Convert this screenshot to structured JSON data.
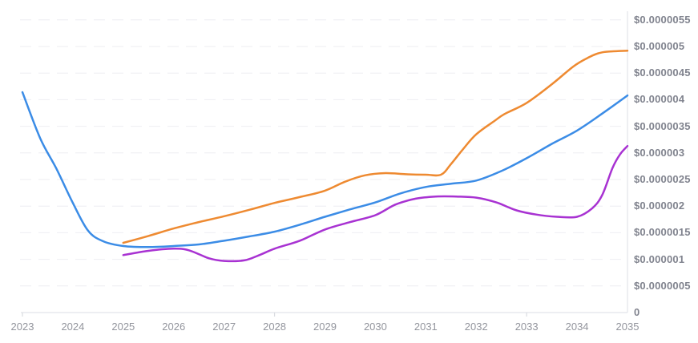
{
  "chart_data": {
    "type": "line",
    "title": "",
    "xlabel": "",
    "ylabel": "",
    "legend": null,
    "grid": "horizontal-dashed",
    "colors": {
      "blue_series": "#3b8ce6",
      "orange_series": "#ee8a31",
      "purple_series": "#a832d2",
      "axis_line": "#e2e4e9",
      "grid_line": "#eeeef2",
      "y_label_text": "#80838e",
      "x_label_text": "#93959d"
    },
    "x_axis": {
      "min": 2023,
      "max": 2035,
      "categories": [
        "2023",
        "2024",
        "2025",
        "2026",
        "2027",
        "2028",
        "2029",
        "2030",
        "2031",
        "2032",
        "2033",
        "2034",
        "2035"
      ],
      "tick_mark_years": [
        2023,
        2028,
        2033
      ]
    },
    "y_axis": {
      "position": "right",
      "min": 0,
      "max": 5.5e-06,
      "ticks": [
        {
          "value": 5.5e-06,
          "label": "$0.0000055"
        },
        {
          "value": 5e-06,
          "label": "$0.000005"
        },
        {
          "value": 4.5e-06,
          "label": "$0.0000045"
        },
        {
          "value": 4e-06,
          "label": "$0.000004"
        },
        {
          "value": 3.5e-06,
          "label": "$0.0000035"
        },
        {
          "value": 3e-06,
          "label": "$0.000003"
        },
        {
          "value": 2.5e-06,
          "label": "$0.0000025"
        },
        {
          "value": 2e-06,
          "label": "$0.000002"
        },
        {
          "value": 1.5e-06,
          "label": "$0.0000015"
        },
        {
          "value": 1e-06,
          "label": "$0.000001"
        },
        {
          "value": 5e-07,
          "label": "$0.0000005"
        },
        {
          "value": 0,
          "label": "0"
        }
      ]
    },
    "series": [
      {
        "name": "blue-line",
        "color_key": "blue_series",
        "points": [
          [
            2023,
            4.14e-06
          ],
          [
            2023.35,
            3.28e-06
          ],
          [
            2023.67,
            2.71e-06
          ],
          [
            2024,
            2.06e-06
          ],
          [
            2024.3,
            1.54e-06
          ],
          [
            2024.6,
            1.34e-06
          ],
          [
            2025,
            1.25e-06
          ],
          [
            2025.5,
            1.23e-06
          ],
          [
            2026,
            1.25e-06
          ],
          [
            2026.5,
            1.28e-06
          ],
          [
            2027,
            1.35e-06
          ],
          [
            2027.5,
            1.43e-06
          ],
          [
            2028,
            1.52e-06
          ],
          [
            2028.5,
            1.65e-06
          ],
          [
            2029,
            1.8e-06
          ],
          [
            2029.5,
            1.94e-06
          ],
          [
            2030,
            2.07e-06
          ],
          [
            2030.5,
            2.24e-06
          ],
          [
            2031,
            2.36e-06
          ],
          [
            2031.5,
            2.42e-06
          ],
          [
            2032,
            2.48e-06
          ],
          [
            2032.5,
            2.66e-06
          ],
          [
            2033,
            2.9e-06
          ],
          [
            2033.5,
            3.17e-06
          ],
          [
            2034,
            3.42e-06
          ],
          [
            2034.5,
            3.74e-06
          ],
          [
            2035,
            4.08e-06
          ]
        ]
      },
      {
        "name": "orange-line",
        "color_key": "orange_series",
        "points": [
          [
            2025,
            1.31e-06
          ],
          [
            2025.5,
            1.44e-06
          ],
          [
            2026,
            1.58e-06
          ],
          [
            2026.5,
            1.7e-06
          ],
          [
            2027,
            1.81e-06
          ],
          [
            2027.5,
            1.93e-06
          ],
          [
            2028,
            2.06e-06
          ],
          [
            2028.5,
            2.17e-06
          ],
          [
            2029,
            2.29e-06
          ],
          [
            2029.4,
            2.46e-06
          ],
          [
            2029.8,
            2.58e-06
          ],
          [
            2030.2,
            2.62e-06
          ],
          [
            2030.6,
            2.6e-06
          ],
          [
            2031,
            2.59e-06
          ],
          [
            2031.3,
            2.59e-06
          ],
          [
            2031.5,
            2.79e-06
          ],
          [
            2031.73,
            3.06e-06
          ],
          [
            2032,
            3.35e-06
          ],
          [
            2032.36,
            3.6e-06
          ],
          [
            2032.56,
            3.73e-06
          ],
          [
            2033,
            3.94e-06
          ],
          [
            2033.5,
            4.29e-06
          ],
          [
            2033.92,
            4.62e-06
          ],
          [
            2034.2,
            4.78e-06
          ],
          [
            2034.5,
            4.89e-06
          ],
          [
            2035,
            4.92e-06
          ]
        ]
      },
      {
        "name": "purple-line",
        "color_key": "purple_series",
        "points": [
          [
            2025,
            1.08e-06
          ],
          [
            2025.5,
            1.16e-06
          ],
          [
            2026,
            1.2e-06
          ],
          [
            2026.3,
            1.17e-06
          ],
          [
            2026.7,
            1.02e-06
          ],
          [
            2027,
            9.7e-07
          ],
          [
            2027.4,
            9.8e-07
          ],
          [
            2027.7,
            1.08e-06
          ],
          [
            2028,
            1.2e-06
          ],
          [
            2028.5,
            1.35e-06
          ],
          [
            2029,
            1.56e-06
          ],
          [
            2029.5,
            1.7e-06
          ],
          [
            2030,
            1.83e-06
          ],
          [
            2030.4,
            2.03e-06
          ],
          [
            2030.8,
            2.14e-06
          ],
          [
            2031.2,
            2.18e-06
          ],
          [
            2031.6,
            2.18e-06
          ],
          [
            2032,
            2.16e-06
          ],
          [
            2032.4,
            2.07e-06
          ],
          [
            2032.8,
            1.92e-06
          ],
          [
            2033.2,
            1.84e-06
          ],
          [
            2033.6,
            1.8e-06
          ],
          [
            2034,
            1.8e-06
          ],
          [
            2034.3,
            1.96e-06
          ],
          [
            2034.5,
            2.21e-06
          ],
          [
            2034.7,
            2.71e-06
          ],
          [
            2034.85,
            2.97e-06
          ],
          [
            2035,
            3.13e-06
          ]
        ]
      }
    ]
  }
}
